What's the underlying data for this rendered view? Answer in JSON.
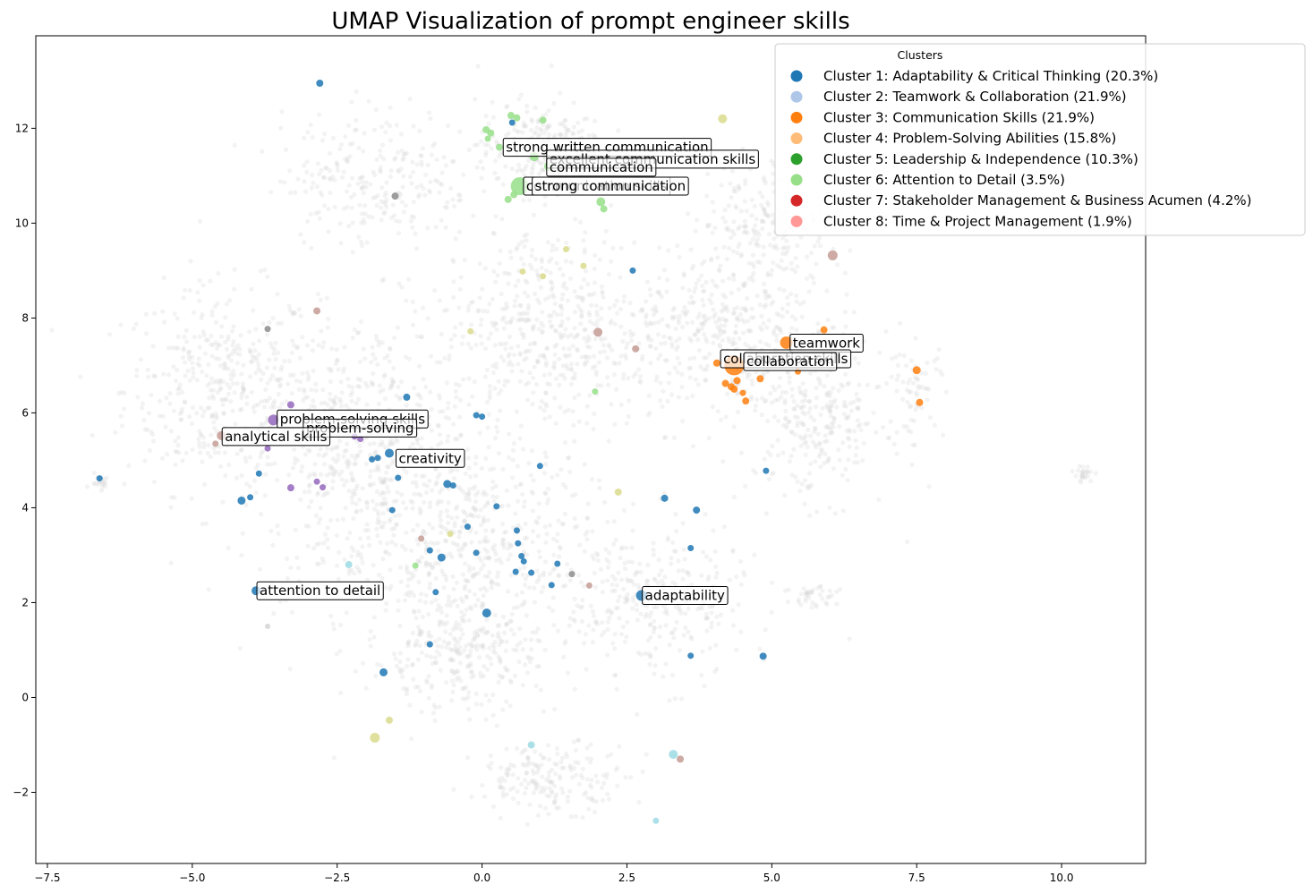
{
  "chart_data": {
    "type": "scatter",
    "title": "UMAP Visualization of prompt engineer skills",
    "xlabel": "",
    "ylabel": "",
    "xlim": [
      -7.7,
      11.45
    ],
    "ylim": [
      -3.5,
      13.95
    ],
    "xticks": [
      -7.5,
      -5.0,
      -2.5,
      0.0,
      2.5,
      5.0,
      7.5,
      10.0
    ],
    "xtick_labels": [
      "−7.5",
      "−5.0",
      "−2.5",
      "0.0",
      "2.5",
      "5.0",
      "7.5",
      "10.0"
    ],
    "yticks": [
      -2,
      0,
      2,
      4,
      6,
      8,
      10,
      12
    ],
    "ytick_labels": [
      "−2",
      "0",
      "2",
      "4",
      "6",
      "8",
      "10",
      "12"
    ],
    "grid": false,
    "legend": {
      "title": "Clusters",
      "placement": "top-right",
      "entries": [
        {
          "label": "Cluster 1: Adaptability & Critical Thinking (20.3%)",
          "color": "#1f77b4"
        },
        {
          "label": "Cluster 2: Teamwork & Collaboration (21.9%)",
          "color": "#aec7e8"
        },
        {
          "label": "Cluster 3: Communication Skills (21.9%)",
          "color": "#ff7f0e"
        },
        {
          "label": "Cluster 4: Problem-Solving Abilities (15.8%)",
          "color": "#ffbb78"
        },
        {
          "label": "Cluster 5: Leadership & Independence (10.3%)",
          "color": "#2ca02c"
        },
        {
          "label": "Cluster 6: Attention to Detail (3.5%)",
          "color": "#98df8a"
        },
        {
          "label": "Cluster 7: Stakeholder Management & Business Acumen (4.2%)",
          "color": "#d62728"
        },
        {
          "label": "Cluster 8: Time & Project Management (1.9%)",
          "color": "#ff9896"
        }
      ]
    },
    "background_points": {
      "color": "#d3d3d3",
      "regions": [
        {
          "cx": -4.5,
          "cy": 6.5,
          "sx": 1.4,
          "sy": 1.8,
          "n": 420
        },
        {
          "cx": -2.0,
          "cy": 5.0,
          "sx": 1.6,
          "sy": 2.6,
          "n": 650
        },
        {
          "cx": 0.0,
          "cy": 3.0,
          "sx": 1.6,
          "sy": 2.2,
          "n": 520
        },
        {
          "cx": 1.2,
          "cy": 7.8,
          "sx": 1.6,
          "sy": 1.8,
          "n": 520
        },
        {
          "cx": 1.0,
          "cy": 11.6,
          "sx": 0.9,
          "sy": 0.8,
          "n": 230
        },
        {
          "cx": -1.8,
          "cy": 11.0,
          "sx": 1.4,
          "sy": 1.2,
          "n": 260
        },
        {
          "cx": 4.2,
          "cy": 7.6,
          "sx": 1.3,
          "sy": 1.5,
          "n": 380
        },
        {
          "cx": 5.8,
          "cy": 6.0,
          "sx": 1.0,
          "sy": 1.5,
          "n": 300
        },
        {
          "cx": 3.0,
          "cy": 2.0,
          "sx": 1.3,
          "sy": 1.4,
          "n": 300
        },
        {
          "cx": 1.2,
          "cy": -1.7,
          "sx": 1.1,
          "sy": 0.6,
          "n": 190
        },
        {
          "cx": 5.0,
          "cy": 10.0,
          "sx": 1.0,
          "sy": 1.1,
          "n": 220
        },
        {
          "cx": -0.5,
          "cy": 0.8,
          "sx": 1.2,
          "sy": 0.9,
          "n": 220
        },
        {
          "cx": 7.5,
          "cy": 6.5,
          "sx": 0.4,
          "sy": 0.8,
          "n": 60
        },
        {
          "cx": 10.4,
          "cy": 4.7,
          "sx": 0.15,
          "sy": 0.15,
          "n": 25
        },
        {
          "cx": -6.6,
          "cy": 4.6,
          "sx": 0.15,
          "sy": 0.15,
          "n": 20
        },
        {
          "cx": 5.8,
          "cy": 2.1,
          "sx": 0.5,
          "sy": 0.3,
          "n": 40
        }
      ]
    },
    "points": [
      {
        "x": -2.8,
        "y": 12.95,
        "c": "#1f77b4",
        "r": 4
      },
      {
        "x": -1.5,
        "y": 10.57,
        "c": "#8c8c8c",
        "r": 4
      },
      {
        "x": -2.85,
        "y": 8.15,
        "c": "#c49c94",
        "r": 4
      },
      {
        "x": -3.7,
        "y": 7.77,
        "c": "#8c8c8c",
        "r": 3.5
      },
      {
        "x": -6.6,
        "y": 4.62,
        "c": "#1f77b4",
        "r": 3.5
      },
      {
        "x": -4.15,
        "y": 4.15,
        "c": "#1f77b4",
        "r": 4.5
      },
      {
        "x": -4.0,
        "y": 4.22,
        "c": "#1f77b4",
        "r": 3.5
      },
      {
        "x": -3.85,
        "y": 4.72,
        "c": "#1f77b4",
        "r": 3.5
      },
      {
        "x": -3.3,
        "y": 4.42,
        "c": "#9467bd",
        "r": 4
      },
      {
        "x": -2.85,
        "y": 4.55,
        "c": "#9467bd",
        "r": 3.5
      },
      {
        "x": -2.75,
        "y": 4.43,
        "c": "#9467bd",
        "r": 3.5
      },
      {
        "x": -3.7,
        "y": 5.25,
        "c": "#9467bd",
        "r": 3.5
      },
      {
        "x": -3.6,
        "y": 5.85,
        "c": "#9467bd",
        "r": 6
      },
      {
        "x": -3.3,
        "y": 6.17,
        "c": "#9467bd",
        "r": 4
      },
      {
        "x": -2.2,
        "y": 5.5,
        "c": "#9467bd",
        "r": 3.5
      },
      {
        "x": -2.1,
        "y": 5.45,
        "c": "#9467bd",
        "r": 3.5
      },
      {
        "x": -4.5,
        "y": 5.52,
        "c": "#c49c94",
        "r": 5
      },
      {
        "x": -4.6,
        "y": 5.35,
        "c": "#c49c94",
        "r": 3.5
      },
      {
        "x": -1.3,
        "y": 6.33,
        "c": "#1f77b4",
        "r": 4
      },
      {
        "x": -1.6,
        "y": 5.15,
        "c": "#1f77b4",
        "r": 5
      },
      {
        "x": -1.8,
        "y": 5.05,
        "c": "#1f77b4",
        "r": 3.5
      },
      {
        "x": -1.9,
        "y": 5.02,
        "c": "#1f77b4",
        "r": 3.5
      },
      {
        "x": -1.45,
        "y": 4.63,
        "c": "#1f77b4",
        "r": 3.5
      },
      {
        "x": -1.55,
        "y": 3.95,
        "c": "#1f77b4",
        "r": 3.5
      },
      {
        "x": -0.6,
        "y": 4.5,
        "c": "#1f77b4",
        "r": 4.5
      },
      {
        "x": -0.5,
        "y": 4.47,
        "c": "#1f77b4",
        "r": 3.5
      },
      {
        "x": -0.1,
        "y": 5.95,
        "c": "#1f77b4",
        "r": 3.5
      },
      {
        "x": 0.0,
        "y": 5.92,
        "c": "#1f77b4",
        "r": 3.5
      },
      {
        "x": -0.2,
        "y": 7.72,
        "c": "#dbdb8d",
        "r": 3.5
      },
      {
        "x": 0.25,
        "y": 4.03,
        "c": "#1f77b4",
        "r": 3.5
      },
      {
        "x": -0.25,
        "y": 3.6,
        "c": "#1f77b4",
        "r": 3.5
      },
      {
        "x": -0.55,
        "y": 3.45,
        "c": "#dbdb8d",
        "r": 3.5
      },
      {
        "x": -1.05,
        "y": 3.35,
        "c": "#c49c94",
        "r": 3.5
      },
      {
        "x": -0.9,
        "y": 3.1,
        "c": "#1f77b4",
        "r": 3.5
      },
      {
        "x": -0.1,
        "y": 3.05,
        "c": "#1f77b4",
        "r": 3.5
      },
      {
        "x": -0.7,
        "y": 2.95,
        "c": "#1f77b4",
        "r": 4.5
      },
      {
        "x": -1.15,
        "y": 2.78,
        "c": "#98df8a",
        "r": 3.5
      },
      {
        "x": -2.3,
        "y": 2.8,
        "c": "#9edae5",
        "r": 4
      },
      {
        "x": -0.8,
        "y": 2.22,
        "c": "#1f77b4",
        "r": 3.5
      },
      {
        "x": -3.9,
        "y": 2.25,
        "c": "#1f77b4",
        "r": 5
      },
      {
        "x": -3.7,
        "y": 1.5,
        "c": "#d3d3d3",
        "r": 3
      },
      {
        "x": 0.6,
        "y": 3.52,
        "c": "#1f77b4",
        "r": 3.5
      },
      {
        "x": 0.62,
        "y": 3.25,
        "c": "#1f77b4",
        "r": 3.5
      },
      {
        "x": 0.68,
        "y": 2.98,
        "c": "#1f77b4",
        "r": 3.5
      },
      {
        "x": 0.72,
        "y": 2.87,
        "c": "#1f77b4",
        "r": 3.5
      },
      {
        "x": 0.58,
        "y": 2.65,
        "c": "#1f77b4",
        "r": 3.5
      },
      {
        "x": 0.85,
        "y": 2.63,
        "c": "#1f77b4",
        "r": 3.5
      },
      {
        "x": 1.3,
        "y": 2.82,
        "c": "#1f77b4",
        "r": 3.5
      },
      {
        "x": 1.2,
        "y": 2.37,
        "c": "#1f77b4",
        "r": 3.5
      },
      {
        "x": 1.55,
        "y": 2.6,
        "c": "#8c8c8c",
        "r": 3.5
      },
      {
        "x": 1.85,
        "y": 2.36,
        "c": "#c49c94",
        "r": 3.5
      },
      {
        "x": 0.08,
        "y": 1.78,
        "c": "#1f77b4",
        "r": 5
      },
      {
        "x": 1.0,
        "y": 4.88,
        "c": "#1f77b4",
        "r": 3.5
      },
      {
        "x": -0.9,
        "y": 1.12,
        "c": "#1f77b4",
        "r": 3.5
      },
      {
        "x": -1.7,
        "y": 0.53,
        "c": "#1f77b4",
        "r": 4.5
      },
      {
        "x": -1.6,
        "y": -0.48,
        "c": "#dbdb8d",
        "r": 4
      },
      {
        "x": -1.85,
        "y": -0.85,
        "c": "#dbdb8d",
        "r": 5.5
      },
      {
        "x": 0.85,
        "y": -1.0,
        "c": "#9edae5",
        "r": 4
      },
      {
        "x": 3.3,
        "y": -1.2,
        "c": "#9edae5",
        "r": 5
      },
      {
        "x": 3.42,
        "y": -1.3,
        "c": "#c49c94",
        "r": 4
      },
      {
        "x": 3.0,
        "y": -2.6,
        "c": "#9edae5",
        "r": 3.5
      },
      {
        "x": 2.75,
        "y": 2.15,
        "c": "#1f77b4",
        "r": 6
      },
      {
        "x": 3.15,
        "y": 4.2,
        "c": "#1f77b4",
        "r": 4
      },
      {
        "x": 3.7,
        "y": 3.95,
        "c": "#1f77b4",
        "r": 4
      },
      {
        "x": 3.6,
        "y": 3.15,
        "c": "#1f77b4",
        "r": 3.5
      },
      {
        "x": 3.6,
        "y": 0.88,
        "c": "#1f77b4",
        "r": 3.5
      },
      {
        "x": 4.85,
        "y": 0.87,
        "c": "#1f77b4",
        "r": 4
      },
      {
        "x": 4.9,
        "y": 4.78,
        "c": "#1f77b4",
        "r": 3.5
      },
      {
        "x": 2.35,
        "y": 4.33,
        "c": "#dbdb8d",
        "r": 4
      },
      {
        "x": 1.95,
        "y": 6.45,
        "c": "#98df8a",
        "r": 3.5
      },
      {
        "x": 2.0,
        "y": 7.7,
        "c": "#c49c94",
        "r": 5
      },
      {
        "x": 2.65,
        "y": 7.35,
        "c": "#c49c94",
        "r": 4
      },
      {
        "x": 2.6,
        "y": 9.0,
        "c": "#1f77b4",
        "r": 3.5
      },
      {
        "x": 1.75,
        "y": 9.1,
        "c": "#dbdb8d",
        "r": 3.5
      },
      {
        "x": 1.45,
        "y": 9.45,
        "c": "#dbdb8d",
        "r": 3.5
      },
      {
        "x": 1.05,
        "y": 8.88,
        "c": "#dbdb8d",
        "r": 3.5
      },
      {
        "x": 0.7,
        "y": 8.98,
        "c": "#dbdb8d",
        "r": 3.5
      },
      {
        "x": 6.05,
        "y": 9.32,
        "c": "#c49c94",
        "r": 5.5
      },
      {
        "x": 4.15,
        "y": 12.2,
        "c": "#dbdb8d",
        "r": 5
      },
      {
        "x": 0.5,
        "y": 12.27,
        "c": "#98df8a",
        "r": 4
      },
      {
        "x": 0.6,
        "y": 12.22,
        "c": "#98df8a",
        "r": 4
      },
      {
        "x": 1.05,
        "y": 12.17,
        "c": "#98df8a",
        "r": 4
      },
      {
        "x": 0.52,
        "y": 12.12,
        "c": "#1f77b4",
        "r": 3.5
      },
      {
        "x": 0.07,
        "y": 11.97,
        "c": "#98df8a",
        "r": 4
      },
      {
        "x": 0.15,
        "y": 11.9,
        "c": "#98df8a",
        "r": 4
      },
      {
        "x": 0.1,
        "y": 11.78,
        "c": "#98df8a",
        "r": 3.5
      },
      {
        "x": 0.3,
        "y": 11.6,
        "c": "#98df8a",
        "r": 4
      },
      {
        "x": 0.9,
        "y": 11.4,
        "c": "#98df8a",
        "r": 5
      },
      {
        "x": 1.15,
        "y": 11.2,
        "c": "#98df8a",
        "r": 5
      },
      {
        "x": 0.65,
        "y": 10.78,
        "c": "#98df8a",
        "r": 10
      },
      {
        "x": 0.55,
        "y": 10.6,
        "c": "#98df8a",
        "r": 4
      },
      {
        "x": 0.45,
        "y": 10.5,
        "c": "#98df8a",
        "r": 4
      },
      {
        "x": 2.05,
        "y": 10.45,
        "c": "#98df8a",
        "r": 5
      },
      {
        "x": 2.1,
        "y": 10.3,
        "c": "#98df8a",
        "r": 4
      },
      {
        "x": 5.25,
        "y": 7.48,
        "c": "#ff7f0e",
        "r": 7
      },
      {
        "x": 5.9,
        "y": 7.75,
        "c": "#ff7f0e",
        "r": 4
      },
      {
        "x": 4.35,
        "y": 7.0,
        "c": "#ff7f0e",
        "r": 11
      },
      {
        "x": 4.05,
        "y": 7.05,
        "c": "#ff7f0e",
        "r": 4
      },
      {
        "x": 4.2,
        "y": 6.62,
        "c": "#ff7f0e",
        "r": 4
      },
      {
        "x": 4.3,
        "y": 6.55,
        "c": "#ff7f0e",
        "r": 4
      },
      {
        "x": 4.35,
        "y": 6.5,
        "c": "#ff7f0e",
        "r": 4
      },
      {
        "x": 4.4,
        "y": 6.68,
        "c": "#ff7f0e",
        "r": 4
      },
      {
        "x": 4.5,
        "y": 6.42,
        "c": "#ff7f0e",
        "r": 3.5
      },
      {
        "x": 4.55,
        "y": 6.25,
        "c": "#ff7f0e",
        "r": 4
      },
      {
        "x": 4.8,
        "y": 6.72,
        "c": "#ff7f0e",
        "r": 4
      },
      {
        "x": 5.45,
        "y": 6.87,
        "c": "#ff7f0e",
        "r": 3.5
      },
      {
        "x": 7.5,
        "y": 6.9,
        "c": "#ff7f0e",
        "r": 4.5
      },
      {
        "x": 7.55,
        "y": 6.22,
        "c": "#ff7f0e",
        "r": 4
      }
    ],
    "annotations": [
      {
        "text": "strong written communication",
        "x": 0.35,
        "y": 11.6
      },
      {
        "text": "excellent communication skills",
        "x": 1.1,
        "y": 11.35
      },
      {
        "text": "communication",
        "x": 1.1,
        "y": 11.18
      },
      {
        "text": "communication skills",
        "x": 0.7,
        "y": 10.78
      },
      {
        "text": "strong communication",
        "x": 0.85,
        "y": 10.78
      },
      {
        "text": "teamwork",
        "x": 5.3,
        "y": 7.47
      },
      {
        "text": "collaboration skills",
        "x": 4.1,
        "y": 7.14
      },
      {
        "text": "collaboration",
        "x": 4.5,
        "y": 7.08
      },
      {
        "text": "problem-solving skills",
        "x": -3.55,
        "y": 5.87
      },
      {
        "text": "problem-solving",
        "x": -3.1,
        "y": 5.68
      },
      {
        "text": "analytical skills",
        "x": -4.5,
        "y": 5.5
      },
      {
        "text": "creativity",
        "x": -1.5,
        "y": 5.04
      },
      {
        "text": "attention to detail",
        "x": -3.9,
        "y": 2.25
      },
      {
        "text": "adaptability",
        "x": 2.75,
        "y": 2.15
      }
    ]
  }
}
